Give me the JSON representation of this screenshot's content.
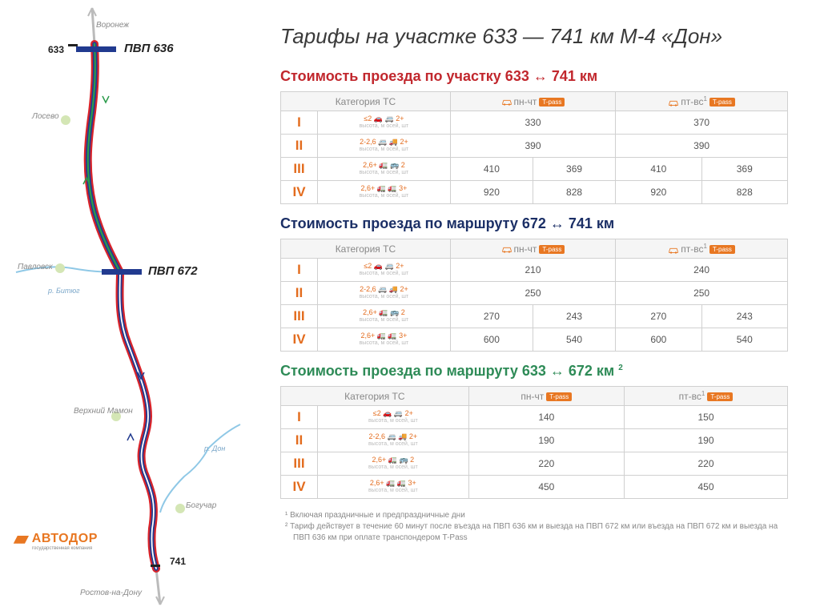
{
  "title": "Тарифы на участке 633 — 741 км М-4 «Дон»",
  "logo": {
    "text": "АВТОДОР",
    "sub": "государственная компания"
  },
  "map": {
    "city_north": "Воронеж",
    "city_south": "Ростов-на-Дону",
    "km_start": "633",
    "km_end": "741",
    "pvp1": "ПВП 636",
    "pvp2": "ПВП 672",
    "towns": [
      "Лосево",
      "Павловск",
      "Верхний Мамон",
      "Богучар"
    ],
    "rivers": [
      "р. Битюг",
      "р. Дон"
    ],
    "route_colors": {
      "red": "#d8232a",
      "blue": "#213a8f",
      "green": "#2b9b4b"
    },
    "river_color": "#8fc8e6",
    "waypoint_color": "#d4e6b5"
  },
  "tables": [
    {
      "title": "Стоимость проезда по участку 633 ↔ 741 км",
      "title_color": "red",
      "header": {
        "cat": "Категория ТС",
        "col1": {
          "label": "пн-чт",
          "badge": "T-pass",
          "icon": "car"
        },
        "col2": {
          "label": "пт-вс",
          "sup": "1",
          "badge": "T-pass",
          "icon": "car"
        }
      },
      "split_cols": true,
      "rows": [
        {
          "roman": "I",
          "spec": [
            "≤2 🚗 🚐 2+",
            "высота, м      осей, шт"
          ],
          "c1a": "330",
          "c1b": "",
          "c2a": "370",
          "c2b": ""
        },
        {
          "roman": "II",
          "spec": [
            "2-2,6 🚐 🚚 2+",
            "высота, м      осей, шт"
          ],
          "c1a": "390",
          "c1b": "",
          "c2a": "390",
          "c2b": ""
        },
        {
          "roman": "III",
          "spec": [
            "2,6+ 🚛 🚌 2",
            "высота, м      осей, шт"
          ],
          "c1a": "410",
          "c1b": "369",
          "c2a": "410",
          "c2b": "369"
        },
        {
          "roman": "IV",
          "spec": [
            "2,6+ 🚛 🚛 3+",
            "высота, м      осей, шт"
          ],
          "c1a": "920",
          "c1b": "828",
          "c2a": "920",
          "c2b": "828"
        }
      ]
    },
    {
      "title": "Стоимость проезда по маршруту 672 ↔ 741 км",
      "title_color": "blue",
      "header": {
        "cat": "Категория ТС",
        "col1": {
          "label": "пн-чт",
          "badge": "T-pass",
          "icon": "car"
        },
        "col2": {
          "label": "пт-вс",
          "sup": "1",
          "badge": "T-pass",
          "icon": "car"
        }
      },
      "split_cols": true,
      "rows": [
        {
          "roman": "I",
          "spec": [
            "≤2 🚗 🚐 2+",
            "высота, м      осей, шт"
          ],
          "c1a": "210",
          "c1b": "",
          "c2a": "240",
          "c2b": ""
        },
        {
          "roman": "II",
          "spec": [
            "2-2,6 🚐 🚚 2+",
            "высота, м      осей, шт"
          ],
          "c1a": "250",
          "c1b": "",
          "c2a": "250",
          "c2b": ""
        },
        {
          "roman": "III",
          "spec": [
            "2,6+ 🚛 🚌 2",
            "высота, м      осей, шт"
          ],
          "c1a": "270",
          "c1b": "243",
          "c2a": "270",
          "c2b": "243"
        },
        {
          "roman": "IV",
          "spec": [
            "2,6+ 🚛 🚛 3+",
            "высота, м      осей, шт"
          ],
          "c1a": "600",
          "c1b": "540",
          "c2a": "600",
          "c2b": "540"
        }
      ]
    },
    {
      "title": "Стоимость проезда по маршруту 633 ↔ 672 км",
      "title_sup": "2",
      "title_color": "green",
      "header": {
        "cat": "Категория ТС",
        "col1": {
          "label": "пн-чт",
          "badge": "T-pass"
        },
        "col2": {
          "label": "пт-вс",
          "sup": "1",
          "badge": "T-pass"
        }
      },
      "split_cols": false,
      "rows": [
        {
          "roman": "I",
          "spec": [
            "≤2 🚗 🚐 2+",
            "высота, м      осей, шт"
          ],
          "c1a": "140",
          "c2a": "150"
        },
        {
          "roman": "II",
          "spec": [
            "2-2,6 🚐 🚚 2+",
            "высота, м      осей, шт"
          ],
          "c1a": "190",
          "c2a": "190"
        },
        {
          "roman": "III",
          "spec": [
            "2,6+ 🚛 🚌 2",
            "высота, м      осей, шт"
          ],
          "c1a": "220",
          "c2a": "220"
        },
        {
          "roman": "IV",
          "spec": [
            "2,6+ 🚛 🚛 3+",
            "высота, м      осей, шт"
          ],
          "c1a": "450",
          "c2a": "450"
        }
      ]
    }
  ],
  "footnotes": [
    "¹  Включая праздничные и предпраздничные дни",
    "²  Тариф действует в течение 60 минут после въезда на ПВП 636 км и выезда на ПВП 672 км или въезда на ПВП 672 км и выезда на ПВП 636 км при оплате транспондером T-Pass"
  ]
}
